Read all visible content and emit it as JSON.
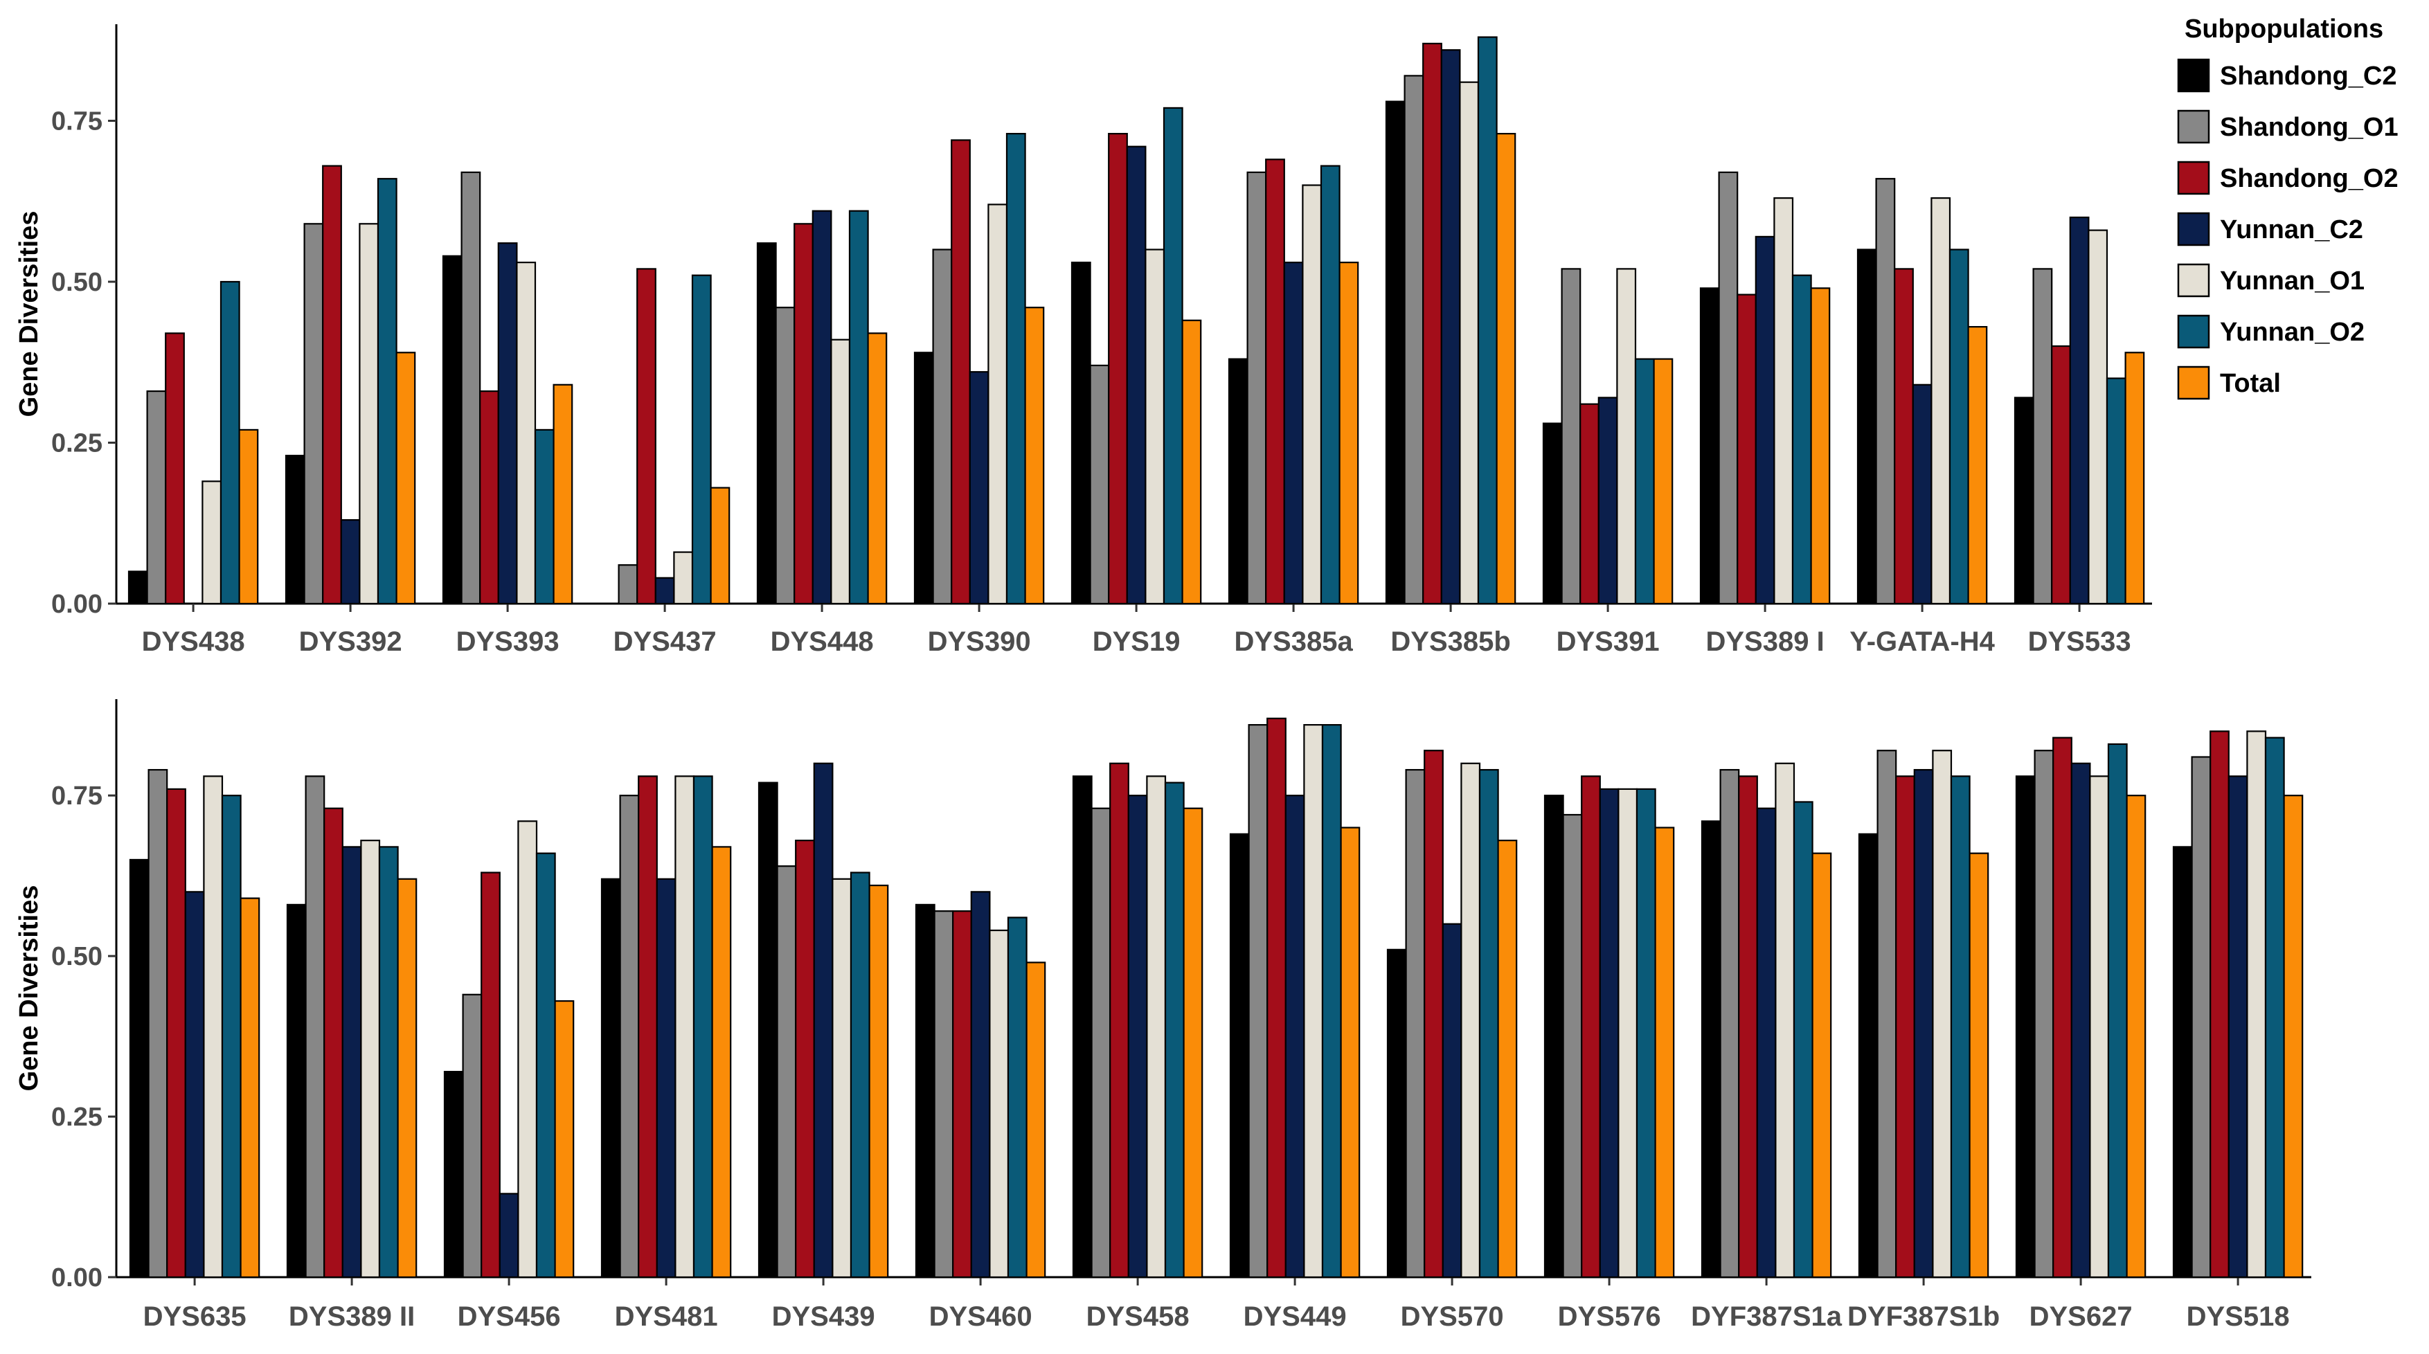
{
  "chart_data": [
    {
      "type": "bar",
      "panel": "top",
      "ylabel": "Gene Diversities",
      "xlabel": "",
      "ylim": [
        0,
        0.9
      ],
      "yticks": [
        0.0,
        0.25,
        0.5,
        0.75
      ],
      "ytick_labels": [
        "0.00",
        "0.25",
        "0.50",
        "0.75"
      ],
      "grid": false,
      "categories": [
        "DYS438",
        "DYS392",
        "DYS393",
        "DYS437",
        "DYS448",
        "DYS390",
        "DYS19",
        "DYS385a",
        "DYS385b",
        "DYS391",
        "DYS389 I",
        "Y-GATA-H4",
        "DYS533"
      ],
      "series": [
        {
          "name": "Shandong_C2",
          "values": [
            0.05,
            0.23,
            0.54,
            0.0,
            0.56,
            0.39,
            0.53,
            0.38,
            0.78,
            0.28,
            0.49,
            0.55,
            0.32
          ]
        },
        {
          "name": "Shandong_O1",
          "values": [
            0.33,
            0.59,
            0.67,
            0.06,
            0.46,
            0.55,
            0.37,
            0.67,
            0.82,
            0.52,
            0.67,
            0.66,
            0.52
          ]
        },
        {
          "name": "Shandong_O2",
          "values": [
            0.42,
            0.68,
            0.33,
            0.52,
            0.59,
            0.72,
            0.73,
            0.69,
            0.87,
            0.31,
            0.48,
            0.52,
            0.4
          ]
        },
        {
          "name": "Yunnan_C2",
          "values": [
            0.0,
            0.13,
            0.56,
            0.04,
            0.61,
            0.36,
            0.71,
            0.53,
            0.86,
            0.32,
            0.57,
            0.34,
            0.6
          ]
        },
        {
          "name": "Yunnan_O1",
          "values": [
            0.19,
            0.59,
            0.53,
            0.08,
            0.41,
            0.62,
            0.55,
            0.65,
            0.81,
            0.52,
            0.63,
            0.63,
            0.58
          ]
        },
        {
          "name": "Yunnan_O2",
          "values": [
            0.5,
            0.66,
            0.27,
            0.51,
            0.61,
            0.73,
            0.77,
            0.68,
            0.88,
            0.38,
            0.51,
            0.55,
            0.35
          ]
        },
        {
          "name": "Total",
          "values": [
            0.27,
            0.39,
            0.34,
            0.18,
            0.42,
            0.46,
            0.44,
            0.53,
            0.73,
            0.38,
            0.49,
            0.43,
            0.39
          ]
        }
      ]
    },
    {
      "type": "bar",
      "panel": "bottom",
      "ylabel": "Gene Diversities",
      "xlabel": "",
      "ylim": [
        0,
        0.9
      ],
      "yticks": [
        0.0,
        0.25,
        0.5,
        0.75
      ],
      "ytick_labels": [
        "0.00",
        "0.25",
        "0.50",
        "0.75"
      ],
      "grid": false,
      "categories": [
        "DYS635",
        "DYS389 II",
        "DYS456",
        "DYS481",
        "DYS439",
        "DYS460",
        "DYS458",
        "DYS449",
        "DYS570",
        "DYS576",
        "DYF387S1a",
        "DYF387S1b",
        "DYS627",
        "DYS518"
      ],
      "series": [
        {
          "name": "Shandong_C2",
          "values": [
            0.65,
            0.58,
            0.32,
            0.62,
            0.77,
            0.58,
            0.78,
            0.69,
            0.51,
            0.75,
            0.71,
            0.69,
            0.78,
            0.67
          ]
        },
        {
          "name": "Shandong_O1",
          "values": [
            0.79,
            0.78,
            0.44,
            0.75,
            0.64,
            0.57,
            0.73,
            0.86,
            0.79,
            0.72,
            0.79,
            0.82,
            0.82,
            0.81
          ]
        },
        {
          "name": "Shandong_O2",
          "values": [
            0.76,
            0.73,
            0.63,
            0.78,
            0.68,
            0.57,
            0.8,
            0.87,
            0.82,
            0.78,
            0.78,
            0.78,
            0.84,
            0.85
          ]
        },
        {
          "name": "Yunnan_C2",
          "values": [
            0.6,
            0.67,
            0.13,
            0.62,
            0.8,
            0.6,
            0.75,
            0.75,
            0.55,
            0.76,
            0.73,
            0.79,
            0.8,
            0.78
          ]
        },
        {
          "name": "Yunnan_O1",
          "values": [
            0.78,
            0.68,
            0.71,
            0.78,
            0.62,
            0.54,
            0.78,
            0.86,
            0.8,
            0.76,
            0.8,
            0.82,
            0.78,
            0.85
          ]
        },
        {
          "name": "Yunnan_O2",
          "values": [
            0.75,
            0.67,
            0.66,
            0.78,
            0.63,
            0.56,
            0.77,
            0.86,
            0.79,
            0.76,
            0.74,
            0.78,
            0.83,
            0.84
          ]
        },
        {
          "name": "Total",
          "values": [
            0.59,
            0.62,
            0.43,
            0.67,
            0.61,
            0.49,
            0.73,
            0.7,
            0.68,
            0.7,
            0.66,
            0.66,
            0.75,
            0.75
          ]
        }
      ]
    }
  ],
  "legend": {
    "title": "Subpopulations",
    "placement": "top-right",
    "entries": [
      {
        "name": "Shandong_C2",
        "color": "#000000"
      },
      {
        "name": "Shandong_O1",
        "color": "#878787"
      },
      {
        "name": "Shandong_O2",
        "color": "#A30D1A"
      },
      {
        "name": "Yunnan_C2",
        "color": "#0B1F4C"
      },
      {
        "name": "Yunnan_O1",
        "color": "#E4E0D5"
      },
      {
        "name": "Yunnan_O2",
        "color": "#0A5A78"
      },
      {
        "name": "Total",
        "color": "#FA8C08"
      }
    ]
  }
}
